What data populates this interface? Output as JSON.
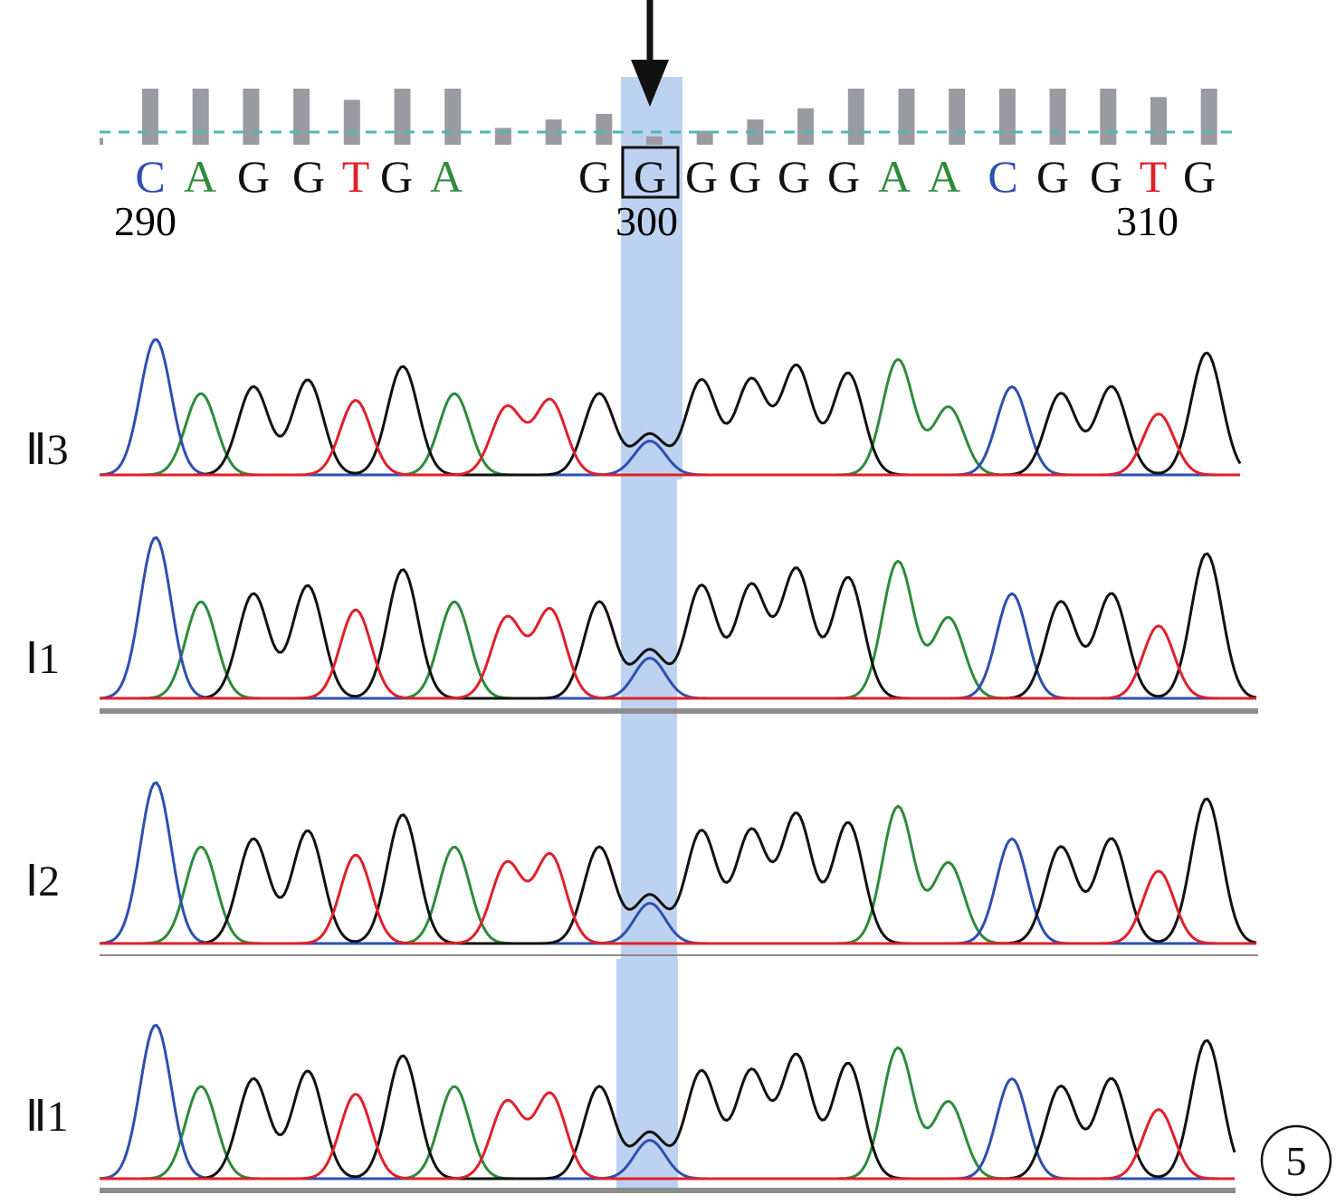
{
  "colors": {
    "A": "#2e8b3a",
    "C": "#2f4fb0",
    "G": "#111111",
    "T": "#e0202a",
    "highlight": "#8fb4e6",
    "quality_bar": "#9a9ba1",
    "threshold_line": "#4fb8b5",
    "baseline": "#8c8c8c"
  },
  "quality_bars": [
    0.12,
    1.0,
    1.0,
    1.0,
    1.0,
    0.8,
    1.0,
    1.0,
    0.3,
    0.45,
    0.55,
    0.15,
    0.25,
    0.45,
    0.65,
    1.0,
    1.0,
    1.0,
    1.0,
    1.0,
    1.0,
    0.85,
    1.0
  ],
  "sequence": {
    "bases": [
      {
        "base": "C",
        "label": "C"
      },
      {
        "base": "A",
        "label": "A"
      },
      {
        "base": "G",
        "label": "G"
      },
      {
        "base": "G",
        "label": "G"
      },
      {
        "base": "T",
        "label": "T"
      },
      {
        "base": "G",
        "label": "G"
      },
      {
        "base": "A",
        "label": "A"
      },
      {
        "base": "G",
        "label": "G"
      },
      {
        "base": "G",
        "label": "G",
        "boxed": true
      },
      {
        "base": "G",
        "label": "G"
      },
      {
        "base": "G",
        "label": "G"
      },
      {
        "base": "G",
        "label": "G"
      },
      {
        "base": "G",
        "label": "G"
      },
      {
        "base": "A",
        "label": "A"
      },
      {
        "base": "A",
        "label": "A"
      },
      {
        "base": "C",
        "label": "C"
      },
      {
        "base": "G",
        "label": "G"
      },
      {
        "base": "G",
        "label": "G"
      },
      {
        "base": "T",
        "label": "T"
      },
      {
        "base": "G",
        "label": "G"
      }
    ],
    "positions": [
      "290",
      "300",
      "310"
    ]
  },
  "samples": [
    {
      "label": "Ⅱ3"
    },
    {
      "label": "Ⅰ1"
    },
    {
      "label": "Ⅰ2"
    },
    {
      "label": "Ⅱ1"
    }
  ],
  "peaks": [
    {
      "base": "C",
      "h": 1.0
    },
    {
      "base": "A",
      "h": 0.6
    },
    {
      "base": "G",
      "h": 0.65
    },
    {
      "base": "G",
      "h": 0.7
    },
    {
      "base": "T",
      "h": 0.55
    },
    {
      "base": "G",
      "h": 0.8
    },
    {
      "base": "A",
      "h": 0.6
    },
    {
      "base": "T",
      "h": 0.5
    },
    {
      "base": "T",
      "h": 0.55
    },
    {
      "base": "G",
      "h": 0.6
    },
    {
      "base": "G",
      "h": 0.3,
      "hetero": "C",
      "h2": 0.25
    },
    {
      "base": "G",
      "h": 0.7
    },
    {
      "base": "G",
      "h": 0.7
    },
    {
      "base": "G",
      "h": 0.8
    },
    {
      "base": "G",
      "h": 0.75
    },
    {
      "base": "A",
      "h": 0.85
    },
    {
      "base": "A",
      "h": 0.5
    },
    {
      "base": "C",
      "h": 0.65
    },
    {
      "base": "G",
      "h": 0.6
    },
    {
      "base": "G",
      "h": 0.65
    },
    {
      "base": "T",
      "h": 0.45
    },
    {
      "base": "G",
      "h": 0.9
    }
  ],
  "panel_number": "5"
}
